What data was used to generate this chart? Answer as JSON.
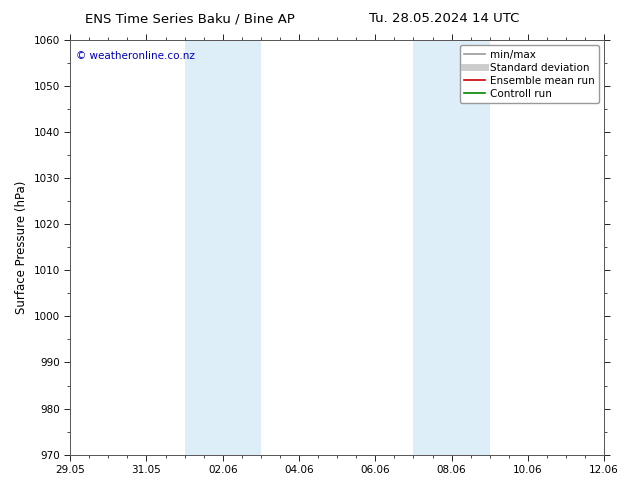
{
  "title_left": "ENS Time Series Baku / Bine AP",
  "title_right": "Tu. 28.05.2024 14 UTC",
  "ylabel": "Surface Pressure (hPa)",
  "ylim": [
    970,
    1060
  ],
  "yticks": [
    970,
    980,
    990,
    1000,
    1010,
    1020,
    1030,
    1040,
    1050,
    1060
  ],
  "xtick_labels": [
    "29.05",
    "31.05",
    "02.06",
    "04.06",
    "06.06",
    "08.06",
    "10.06",
    "12.06"
  ],
  "xtick_positions": [
    0,
    2,
    4,
    6,
    8,
    10,
    12,
    14
  ],
  "x_start_day": 0,
  "x_end_day": 14,
  "blue_bands": [
    {
      "x_start": 3.0,
      "x_end": 5.0
    },
    {
      "x_start": 9.0,
      "x_end": 11.0
    }
  ],
  "background_color": "#ffffff",
  "band_color": "#ddeef8",
  "watermark": "© weatheronline.co.nz",
  "watermark_color": "#0000bb",
  "legend_items": [
    {
      "label": "min/max",
      "color": "#999999",
      "lw": 1.2,
      "style": "-"
    },
    {
      "label": "Standard deviation",
      "color": "#cccccc",
      "lw": 5,
      "style": "-"
    },
    {
      "label": "Ensemble mean run",
      "color": "#cc0000",
      "lw": 1.2,
      "style": "-"
    },
    {
      "label": "Controll run",
      "color": "#008800",
      "lw": 1.2,
      "style": "-"
    }
  ],
  "title_fontsize": 9.5,
  "tick_fontsize": 7.5,
  "ylabel_fontsize": 8.5,
  "watermark_fontsize": 7.5,
  "legend_fontsize": 7.5
}
